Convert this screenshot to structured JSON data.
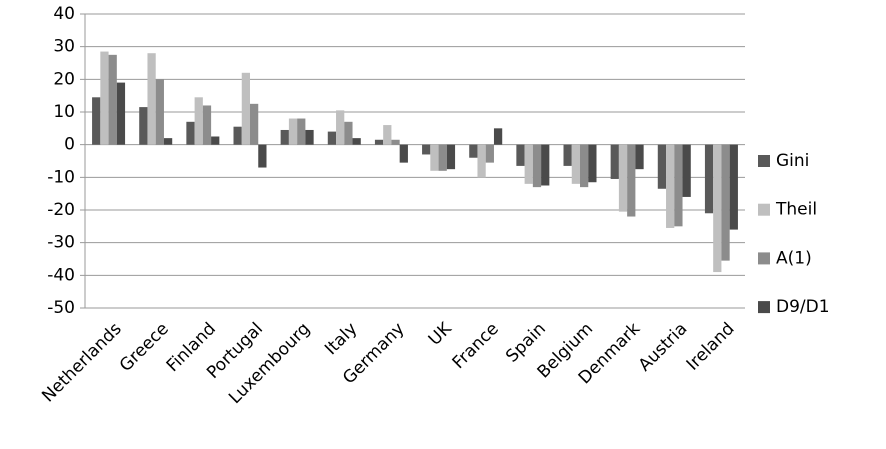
{
  "chart_data": {
    "type": "bar",
    "categories": [
      "Netherlands",
      "Greece",
      "Finland",
      "Portugal",
      "Luxembourg",
      "Italy",
      "Germany",
      "UK",
      "France",
      "Spain",
      "Belgium",
      "Denmark",
      "Austria",
      "Ireland"
    ],
    "series": [
      {
        "name": "Gini",
        "color": "#595959",
        "values": [
          14.5,
          11.5,
          7,
          5.5,
          4.5,
          4,
          1.5,
          -3,
          -4,
          -6.5,
          -6.5,
          -10.5,
          -13.5,
          -21
        ]
      },
      {
        "name": "Theil",
        "color": "#bfbfbf",
        "values": [
          28.5,
          28,
          14.5,
          22,
          8,
          10.5,
          6,
          -8,
          -10,
          -12,
          -12,
          -20.5,
          -25.5,
          -39
        ]
      },
      {
        "name": "A(1)",
        "color": "#8c8c8c",
        "values": [
          27.5,
          20,
          12,
          12.5,
          8,
          7,
          1.5,
          -8,
          -5.5,
          -13,
          -13,
          -22,
          -25,
          -35.5
        ]
      },
      {
        "name": "D9/D1",
        "color": "#4a4a4a",
        "values": [
          19,
          2,
          2.5,
          -7,
          4.5,
          2,
          -5.5,
          -7.5,
          5,
          -12.5,
          -11.5,
          -7.5,
          -16,
          -26
        ]
      }
    ],
    "ylim": [
      -50,
      40
    ],
    "yticks": [
      -50,
      -40,
      -30,
      -20,
      -10,
      0,
      10,
      20,
      30,
      40
    ],
    "grid": true,
    "legend": "right"
  }
}
